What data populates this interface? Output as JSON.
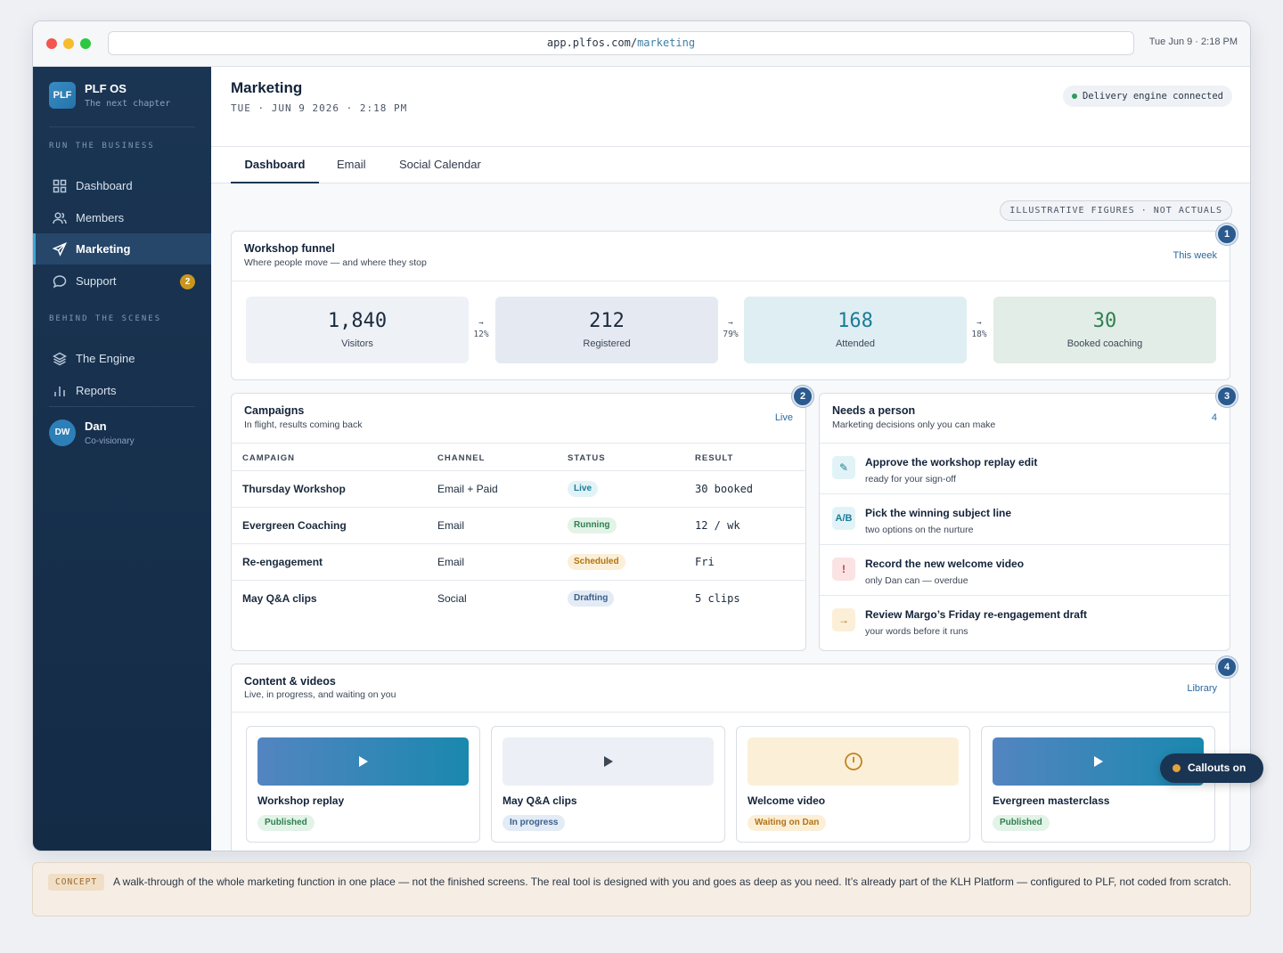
{
  "browser": {
    "url_host": "app.plfos.com/",
    "url_path": "marketing",
    "clock": "Tue Jun 9 · 2:18 PM"
  },
  "brand": {
    "logo": "PLF",
    "name": "PLF OS",
    "tagline": "The next chapter"
  },
  "sidebar": {
    "section_run": "RUN THE BUSINESS",
    "section_behind": "BEHIND THE SCENES",
    "items": [
      {
        "label": "Dashboard",
        "icon": "grid-icon"
      },
      {
        "label": "Members",
        "icon": "users-icon"
      },
      {
        "label": "Marketing",
        "icon": "send-icon",
        "active": true
      },
      {
        "label": "Support",
        "icon": "chat-icon",
        "badge": "2"
      },
      {
        "label": "The Engine",
        "icon": "layers-icon"
      },
      {
        "label": "Reports",
        "icon": "bar-chart-icon"
      }
    ],
    "user": {
      "initials": "DW",
      "name": "Dan",
      "role": "Co-visionary"
    }
  },
  "header": {
    "title": "Marketing",
    "date": "TUE · JUN 9 2026 · 2:18 PM",
    "status": "Delivery engine connected",
    "status_color": "#2e9b5b"
  },
  "tabs": [
    "Dashboard",
    "Email",
    "Social Calendar"
  ],
  "figures_note": "ILLUSTRATIVE FIGURES · NOT ACTUALS",
  "funnel": {
    "callout": "1",
    "title": "Workshop funnel",
    "subtitle": "Where people move — and where they stop",
    "link": "This week",
    "stages": [
      {
        "value": "1,840",
        "label": "Visitors"
      },
      {
        "value": "212",
        "label": "Registered"
      },
      {
        "value": "168",
        "label": "Attended"
      },
      {
        "value": "30",
        "label": "Booked coaching"
      }
    ],
    "arrow": "→",
    "rates": [
      "12%",
      "79%",
      "18%"
    ]
  },
  "campaigns": {
    "callout": "2",
    "title": "Campaigns",
    "subtitle": "In flight, results coming back",
    "link": "Live",
    "columns": [
      "CAMPAIGN",
      "CHANNEL",
      "STATUS",
      "RESULT"
    ],
    "rows": [
      {
        "name": "Thursday Workshop",
        "channel": "Email + Paid",
        "status": "Live",
        "result": "30 booked"
      },
      {
        "name": "Evergreen Coaching",
        "channel": "Email",
        "status": "Running",
        "result": "12 / wk"
      },
      {
        "name": "Re-engagement",
        "channel": "Email",
        "status": "Scheduled",
        "result": "Fri"
      },
      {
        "name": "May Q&A clips",
        "channel": "Social",
        "status": "Drafting",
        "result": "5 clips"
      }
    ]
  },
  "needs": {
    "callout": "3",
    "title": "Needs a person",
    "subtitle": "Marketing decisions only you can make",
    "count": "4",
    "items": [
      {
        "icon_text": "✎",
        "title": "Approve the workshop replay edit",
        "sub": "ready for your sign-off"
      },
      {
        "icon_text": "A/B",
        "title": "Pick the winning subject line",
        "sub": "two options on the nurture"
      },
      {
        "icon_text": "!",
        "title": "Record the new welcome video",
        "sub": "only Dan can — overdue"
      },
      {
        "icon_text": "→",
        "title": "Review Margo’s Friday re-engagement draft",
        "sub": "your words before it runs"
      }
    ]
  },
  "content": {
    "callout": "4",
    "title": "Content & videos",
    "subtitle": "Live, in progress, and waiting on you",
    "link": "Library",
    "tiles": [
      {
        "title": "Workshop replay",
        "status": "Published",
        "icon": "play-icon"
      },
      {
        "title": "May Q&A clips",
        "status": "In progress",
        "icon": "play-icon"
      },
      {
        "title": "Welcome video",
        "status": "Waiting on Dan",
        "icon": "clock-icon"
      },
      {
        "title": "Evergreen masterclass",
        "status": "Published",
        "icon": "play-icon"
      }
    ]
  },
  "callouts_toggle": "Callouts on",
  "concept": {
    "tag": "CONCEPT",
    "text": "A walk-through of the whole marketing function in one place — not the finished screens. The real tool is designed with you and goes as deep as you need. It’s already part of the KLH Platform — configured to PLF, not coded from scratch."
  }
}
